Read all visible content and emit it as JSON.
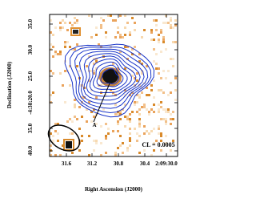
{
  "figure": {
    "x_axis_label": "Right Ascension (J2000)",
    "y_axis_label": "Declination (J2000)",
    "x_tick_labels": [
      "31.6",
      "31.2",
      "30.8",
      "30.4",
      "2:09:30.0"
    ],
    "y_tick_labels": [
      "35.0",
      "30.0",
      "25.0",
      "-4:38:20.0",
      "35.0",
      "40.0"
    ],
    "annotation": "CL = 0.0005",
    "marker_label": "A"
  }
}
